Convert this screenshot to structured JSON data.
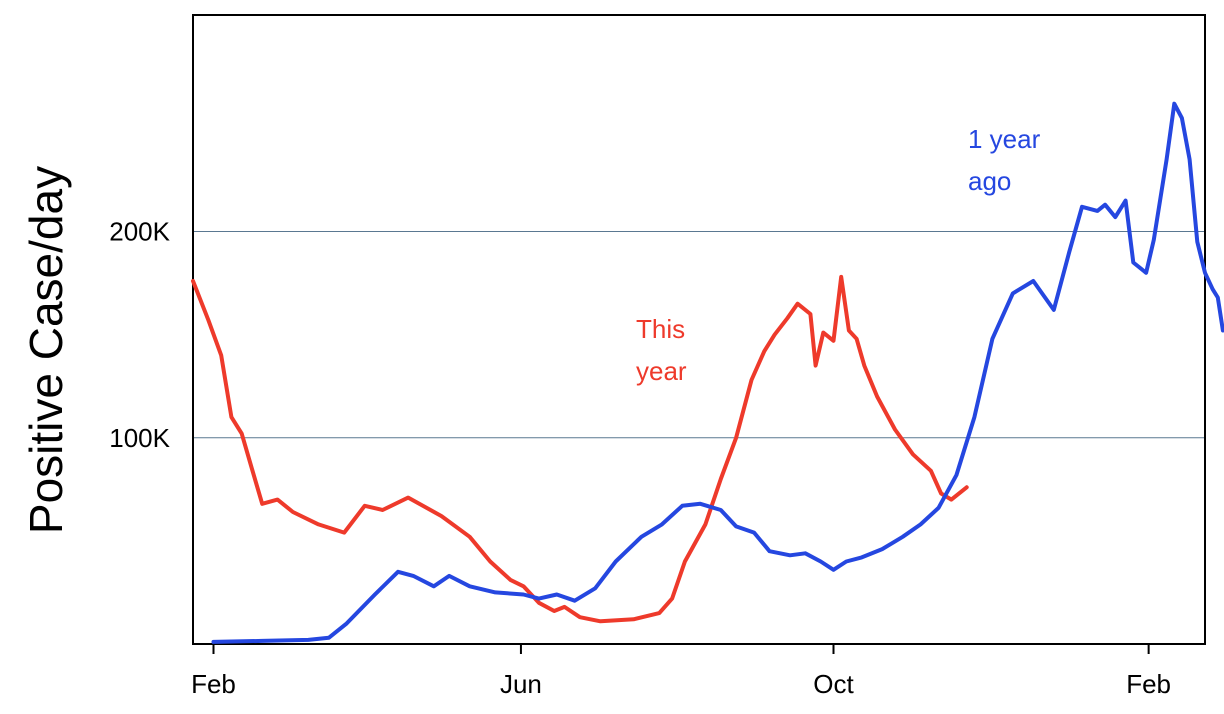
{
  "chart_data": {
    "type": "line",
    "title": "",
    "xlabel": "",
    "ylabel": "Positive Case/day",
    "x_ticks": [
      "Feb",
      "Jun",
      "Oct",
      "Feb"
    ],
    "y_ticks": [
      "100K",
      "200K"
    ],
    "y_tick_values": [
      100000,
      200000
    ],
    "xlim": [
      "2021-01-24",
      "2022-02-23"
    ],
    "ylim": [
      0,
      305000
    ],
    "grid": "horizontal at y ticks",
    "series": [
      {
        "name": "This year",
        "color": "#ee3a2b",
        "points": [
          [
            "2021-01-24",
            176000
          ],
          [
            "2021-01-30",
            157000
          ],
          [
            "2021-02-04",
            140000
          ],
          [
            "2021-02-08",
            110000
          ],
          [
            "2021-02-12",
            102000
          ],
          [
            "2021-02-16",
            85000
          ],
          [
            "2021-02-20",
            68000
          ],
          [
            "2021-02-26",
            70000
          ],
          [
            "2021-03-04",
            64000
          ],
          [
            "2021-03-14",
            58000
          ],
          [
            "2021-03-24",
            54000
          ],
          [
            "2021-04-01",
            67000
          ],
          [
            "2021-04-08",
            65000
          ],
          [
            "2021-04-18",
            71000
          ],
          [
            "2021-05-01",
            62000
          ],
          [
            "2021-05-12",
            52000
          ],
          [
            "2021-05-20",
            40000
          ],
          [
            "2021-05-28",
            31000
          ],
          [
            "2021-06-02",
            28000
          ],
          [
            "2021-06-08",
            20000
          ],
          [
            "2021-06-14",
            16000
          ],
          [
            "2021-06-18",
            18000
          ],
          [
            "2021-06-24",
            13000
          ],
          [
            "2021-07-02",
            11000
          ],
          [
            "2021-07-15",
            12000
          ],
          [
            "2021-07-25",
            15000
          ],
          [
            "2021-07-30",
            22000
          ],
          [
            "2021-08-04",
            40000
          ],
          [
            "2021-08-12",
            58000
          ],
          [
            "2021-08-18",
            80000
          ],
          [
            "2021-08-24",
            100000
          ],
          [
            "2021-08-30",
            128000
          ],
          [
            "2021-09-04",
            142000
          ],
          [
            "2021-09-08",
            150000
          ],
          [
            "2021-09-13",
            158000
          ],
          [
            "2021-09-17",
            165000
          ],
          [
            "2021-09-22",
            160000
          ],
          [
            "2021-09-24",
            135000
          ],
          [
            "2021-09-27",
            151000
          ],
          [
            "2021-10-01",
            147000
          ],
          [
            "2021-10-04",
            178000
          ],
          [
            "2021-10-07",
            152000
          ],
          [
            "2021-10-10",
            148000
          ],
          [
            "2021-10-13",
            135000
          ],
          [
            "2021-10-18",
            120000
          ],
          [
            "2021-10-25",
            104000
          ],
          [
            "2021-11-01",
            92000
          ],
          [
            "2021-11-08",
            84000
          ],
          [
            "2021-11-12",
            73000
          ],
          [
            "2021-11-16",
            70000
          ],
          [
            "2021-11-22",
            76000
          ]
        ]
      },
      {
        "name": "1 year ago",
        "color": "#2547e0",
        "points": [
          [
            "2021-02-01",
            1000
          ],
          [
            "2021-02-20",
            1500
          ],
          [
            "2021-03-10",
            2000
          ],
          [
            "2021-03-18",
            3000
          ],
          [
            "2021-03-25",
            10000
          ],
          [
            "2021-04-05",
            24000
          ],
          [
            "2021-04-14",
            35000
          ],
          [
            "2021-04-20",
            33000
          ],
          [
            "2021-04-28",
            28000
          ],
          [
            "2021-05-04",
            33000
          ],
          [
            "2021-05-12",
            28000
          ],
          [
            "2021-05-22",
            25000
          ],
          [
            "2021-06-02",
            24000
          ],
          [
            "2021-06-08",
            22000
          ],
          [
            "2021-06-15",
            24000
          ],
          [
            "2021-06-22",
            21000
          ],
          [
            "2021-06-30",
            27000
          ],
          [
            "2021-07-08",
            40000
          ],
          [
            "2021-07-18",
            52000
          ],
          [
            "2021-07-26",
            58000
          ],
          [
            "2021-08-03",
            67000
          ],
          [
            "2021-08-10",
            68000
          ],
          [
            "2021-08-18",
            65000
          ],
          [
            "2021-08-24",
            57000
          ],
          [
            "2021-08-31",
            54000
          ],
          [
            "2021-09-06",
            45000
          ],
          [
            "2021-09-14",
            43000
          ],
          [
            "2021-09-20",
            44000
          ],
          [
            "2021-09-26",
            40000
          ],
          [
            "2021-10-01",
            36000
          ],
          [
            "2021-10-06",
            40000
          ],
          [
            "2021-10-12",
            42000
          ],
          [
            "2021-10-20",
            46000
          ],
          [
            "2021-10-28",
            52000
          ],
          [
            "2021-11-04",
            58000
          ],
          [
            "2021-11-11",
            66000
          ],
          [
            "2021-11-18",
            82000
          ],
          [
            "2021-11-25",
            110000
          ],
          [
            "2021-12-02",
            148000
          ],
          [
            "2021-12-10",
            170000
          ],
          [
            "2021-12-18",
            176000
          ],
          [
            "2021-12-26",
            162000
          ],
          [
            "2022-01-01",
            190000
          ],
          [
            "2022-01-06",
            212000
          ],
          [
            "2022-01-12",
            210000
          ],
          [
            "2022-01-15",
            213000
          ],
          [
            "2022-01-19",
            207000
          ],
          [
            "2022-01-23",
            215000
          ],
          [
            "2022-01-26",
            185000
          ],
          [
            "2022-01-31",
            180000
          ],
          [
            "2022-02-03",
            196000
          ],
          [
            "2022-02-08",
            235000
          ],
          [
            "2022-02-11",
            262000
          ],
          [
            "2022-02-14",
            255000
          ],
          [
            "2022-02-17",
            235000
          ],
          [
            "2022-02-20",
            195000
          ],
          [
            "2022-02-23",
            180000
          ],
          [
            "2022-02-26",
            172000
          ],
          [
            "2022-02-28",
            168000
          ],
          [
            "2022-03-02",
            152000
          ]
        ]
      }
    ]
  },
  "annotations": {
    "this_year": [
      "This",
      "year"
    ],
    "one_year_ago": [
      "1 year",
      "ago"
    ]
  }
}
